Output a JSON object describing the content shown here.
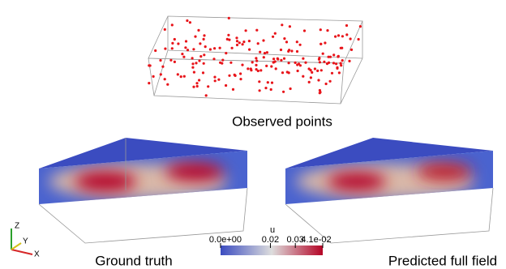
{
  "panels": [
    {
      "title": "Observed points"
    },
    {
      "title": "Ground truth"
    },
    {
      "title": "Predicted full field"
    }
  ],
  "colorbar": {
    "title": "u",
    "ticks": [
      {
        "value": 0,
        "label": "0.0e+00"
      },
      {
        "value": 0.02,
        "label": "0.02"
      },
      {
        "value": 0.03,
        "label": "0.03"
      },
      {
        "value": 0.041,
        "label": "4.1e-02"
      }
    ]
  },
  "axes_triad": {
    "z": "Z",
    "y": "Y",
    "x": "X"
  }
}
